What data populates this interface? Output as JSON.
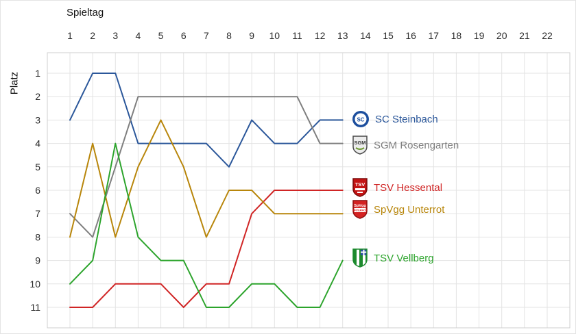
{
  "chart_data": {
    "type": "line",
    "title": "",
    "xlabel": "Spieltag",
    "ylabel": "Platz",
    "x_ticks": [
      1,
      2,
      3,
      4,
      5,
      6,
      7,
      8,
      9,
      10,
      11,
      12,
      13,
      14,
      15,
      16,
      17,
      18,
      19,
      20,
      21,
      22
    ],
    "y_ticks": [
      1,
      2,
      3,
      4,
      5,
      6,
      7,
      8,
      9,
      10,
      11
    ],
    "y_axis_inverted": true,
    "grid": true,
    "legend_position": "right-inside",
    "x": [
      1,
      2,
      3,
      4,
      5,
      6,
      7,
      8,
      9,
      10,
      11,
      12,
      13
    ],
    "series": [
      {
        "name": "SC Steinbach",
        "color": "#2b579a",
        "values": [
          3,
          1,
          1,
          4,
          4,
          4,
          4,
          5,
          3,
          4,
          4,
          3,
          3
        ]
      },
      {
        "name": "SGM Rosengarten",
        "color": "#7f7f7f",
        "values": [
          7,
          8,
          5,
          2,
          2,
          2,
          2,
          2,
          2,
          2,
          2,
          4,
          4
        ]
      },
      {
        "name": "TSV Hessental",
        "color": "#d02525",
        "values": [
          11,
          11,
          10,
          10,
          10,
          11,
          10,
          10,
          7,
          6,
          6,
          6,
          6
        ]
      },
      {
        "name": "SpVgg Unterrot",
        "color": "#b8860b",
        "values": [
          8,
          4,
          8,
          5,
          3,
          5,
          8,
          6,
          6,
          7,
          7,
          7,
          7
        ]
      },
      {
        "name": "TSV Vellberg",
        "color": "#2ca42c",
        "values": [
          10,
          9,
          4,
          8,
          9,
          9,
          11,
          11,
          10,
          10,
          11,
          11,
          9
        ]
      }
    ],
    "colors": {
      "gridline": "#e3e3e3",
      "plot_border": "#cfcfcf",
      "tick_text": "#2b2b2b"
    }
  }
}
